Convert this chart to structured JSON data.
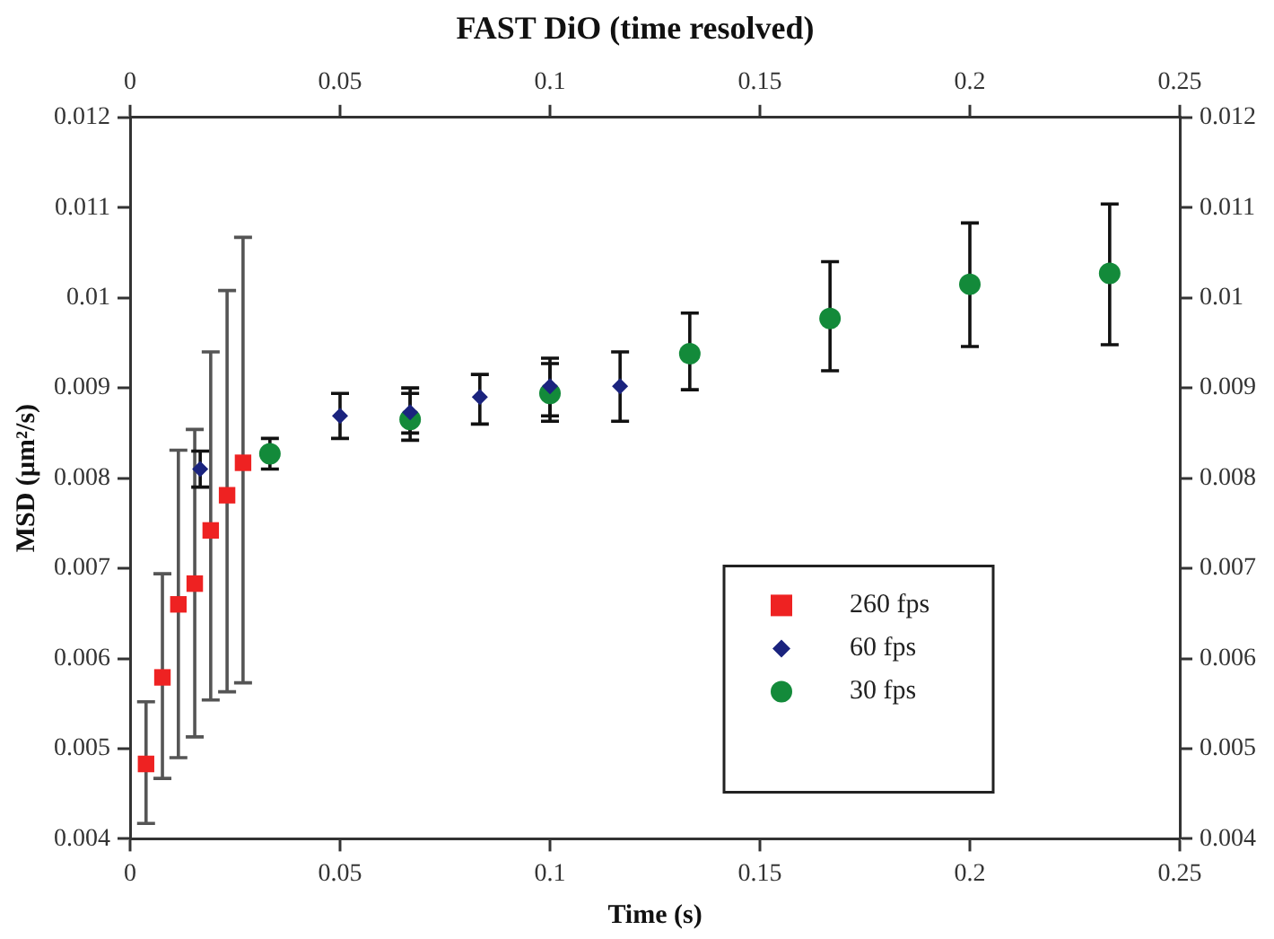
{
  "chart_data": {
    "type": "scatter",
    "title": "FAST DiO (time resolved)",
    "xlabel": "Time (s)",
    "ylabel": "MSD (µm²/s)",
    "xlim": [
      0,
      0.25
    ],
    "xticks": [
      0,
      0.05,
      0.1,
      0.15,
      0.2,
      0.25
    ],
    "x2lim": [
      0,
      0.25
    ],
    "x2ticks": [
      0,
      0.05,
      0.1,
      0.15,
      0.2,
      0.25
    ],
    "ylim": [
      0.004,
      0.012
    ],
    "yticks": [
      0.004,
      0.005,
      0.006,
      0.007,
      0.008,
      0.009,
      0.01,
      0.011,
      0.012
    ],
    "y2lim": [
      0.004,
      0.012
    ],
    "y2ticks": [
      0.004,
      0.005,
      0.006,
      0.007,
      0.008,
      0.009,
      0.01,
      0.011,
      0.012
    ],
    "grid": false,
    "legend": "bottom right",
    "series": [
      {
        "name": "260 fps",
        "color": "#ee2222",
        "marker": "square",
        "x": [
          0.0038,
          0.0077,
          0.0115,
          0.0154,
          0.0192,
          0.0231,
          0.0269
        ],
        "values": [
          0.00483,
          0.00579,
          0.0066,
          0.00683,
          0.00742,
          0.00781,
          0.00817
        ],
        "errors": [
          [
            0.00417,
            0.00552
          ],
          [
            0.00467,
            0.00694
          ],
          [
            0.0049,
            0.00831
          ],
          [
            0.00513,
            0.00854
          ],
          [
            0.00554,
            0.0094
          ],
          [
            0.00563,
            0.01008
          ],
          [
            0.00573,
            0.01067
          ]
        ]
      },
      {
        "name": "60 fps",
        "color": "#1a237e",
        "marker": "diamond",
        "x": [
          0.0167,
          0.05,
          0.0667,
          0.0833,
          0.1,
          0.1167
        ],
        "values": [
          0.0081,
          0.00869,
          0.00873,
          0.0089,
          0.00902,
          0.00902
        ],
        "errors": [
          [
            0.0079,
            0.0083
          ],
          [
            0.00844,
            0.00894
          ],
          [
            0.0085,
            0.009
          ],
          [
            0.0086,
            0.00915
          ],
          [
            0.00863,
            0.00933
          ],
          [
            0.00863,
            0.0094
          ]
        ]
      },
      {
        "name": "30 fps",
        "color": "#138a3a",
        "marker": "circle",
        "x": [
          0.0333,
          0.0667,
          0.1,
          0.1333,
          0.1667,
          0.2,
          0.2333
        ],
        "values": [
          0.00827,
          0.00865,
          0.00894,
          0.00938,
          0.00977,
          0.01015,
          0.01027
        ],
        "errors": [
          [
            0.0081,
            0.00844
          ],
          [
            0.00842,
            0.00894
          ],
          [
            0.00869,
            0.00927
          ],
          [
            0.00898,
            0.00983
          ],
          [
            0.00919,
            0.0104
          ],
          [
            0.00946,
            0.01083
          ],
          [
            0.00948,
            0.01104
          ]
        ]
      }
    ]
  }
}
